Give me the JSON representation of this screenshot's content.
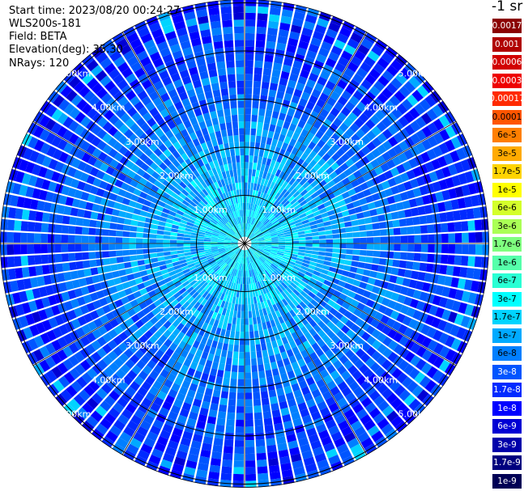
{
  "header": {
    "start_time": "Start time: 2023/08/20 00:24:27",
    "device": "WLS200s-181",
    "field": "Field: BETA",
    "elevation": "Elevation(deg): 35.30",
    "nrays": "NRays: 120"
  },
  "chart_data": {
    "type": "heatmap",
    "projection": "polar (PPI)",
    "field": "BETA",
    "elevation_deg": 35.3,
    "n_rays": 120,
    "range_ring_labels": [
      "1.00km",
      "2.00km",
      "3.00km",
      "4.00km",
      "5.00km"
    ],
    "colorbar": {
      "unit_label": "-1 sr",
      "ticks": [
        "0.0017",
        "0.001",
        "0.0006",
        "0.0003",
        "0.00017",
        "0.0001",
        "6e-5",
        "3e-5",
        "1.7e-5",
        "1e-5",
        "6e-6",
        "3e-6",
        "1.7e-6",
        "1e-6",
        "6e-7",
        "3e-7",
        "1.7e-7",
        "1e-7",
        "6e-8",
        "3e-8",
        "1.7e-8",
        "1e-8",
        "6e-9",
        "3e-9",
        "1.7e-9",
        "1e-9"
      ],
      "colors": [
        "#8b0000",
        "#b00000",
        "#d20000",
        "#ee0000",
        "#ff2a00",
        "#ff5500",
        "#ff7f00",
        "#ffaa00",
        "#ffd400",
        "#ffff00",
        "#d4ff2a",
        "#aaff55",
        "#7fff7f",
        "#55ffaa",
        "#2affd4",
        "#00ffff",
        "#00d4ff",
        "#00aaff",
        "#007fff",
        "#0055ff",
        "#002aff",
        "#0000ff",
        "#0000d4",
        "#0000aa",
        "#00007f",
        "#000055"
      ]
    }
  }
}
